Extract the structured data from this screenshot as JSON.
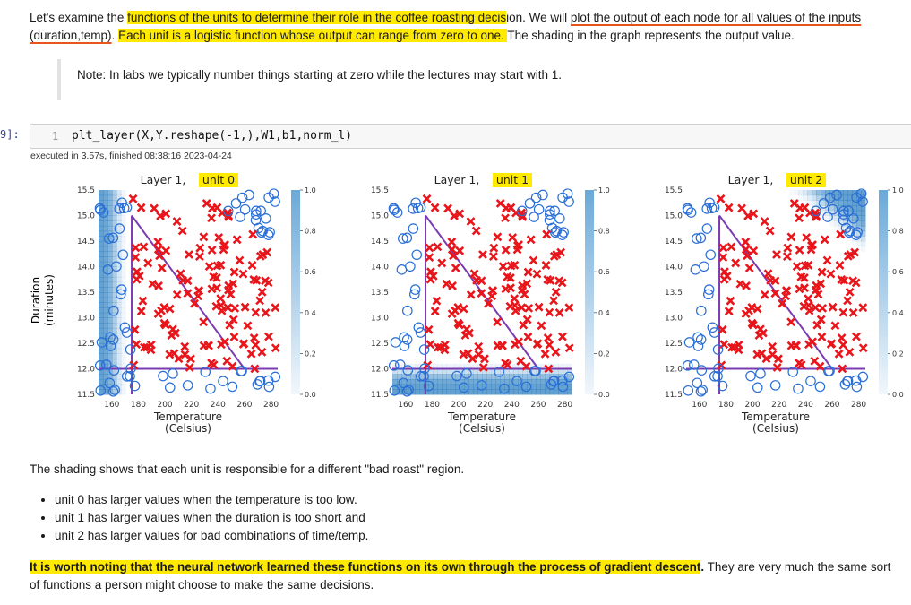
{
  "intro": {
    "t1": "Let's examine the ",
    "t2": "functions of the units to determine their role in the coffee roasting decis",
    "t3": "ion. We will ",
    "t4": "plot the output of each node for all values of the inputs",
    "t5": "(duration,temp)",
    "t6": ". ",
    "t7": "Each unit is a logistic function whose output can range from zero to one. ",
    "t8": "The shading in the graph represents the output value."
  },
  "note": "Note: In labs we typically number things starting at zero while the lectures may start with 1.",
  "code_cell": {
    "prompt": "9]:",
    "line_no": "1",
    "code": "plt_layer(X,Y.reshape(-1,),W1,b1,norm_l)",
    "exec_info": "executed in 3.57s, finished 08:38:16 2023-04-24"
  },
  "colors": {
    "cross": "#e8161b",
    "circle": "#2a6fd6",
    "line": "#7b3bb0",
    "highlight": "#ffea00",
    "shade": "#2d7fc0"
  },
  "chart_data": [
    {
      "type": "heatmap",
      "title_prefix": "Layer 1, ",
      "title_unit": "unit 0",
      "xlabel": "Temperature\n(Celsius)",
      "ylabel": "Duration\n(minutes)",
      "xlim": [
        150,
        285
      ],
      "ylim": [
        11.5,
        15.5
      ],
      "xticks": [
        160,
        180,
        200,
        220,
        240,
        260,
        280
      ],
      "yticks": [
        11.5,
        12.0,
        12.5,
        13.0,
        13.5,
        14.0,
        14.5,
        15.0,
        15.5
      ],
      "colorbar_ticks": [
        0.0,
        0.2,
        0.4,
        0.6,
        0.8,
        1.0
      ],
      "shading": "high when temperature is too low"
    },
    {
      "type": "heatmap",
      "title_prefix": "Layer 1, ",
      "title_unit": "unit 1",
      "xlabel": "Temperature\n(Celsius)",
      "xlim": [
        150,
        285
      ],
      "ylim": [
        11.5,
        15.5
      ],
      "xticks": [
        160,
        180,
        200,
        220,
        240,
        260,
        280
      ],
      "yticks": [
        11.5,
        12.0,
        12.5,
        13.0,
        13.5,
        14.0,
        14.5,
        15.0,
        15.5
      ],
      "colorbar_ticks": [
        0.0,
        0.2,
        0.4,
        0.6,
        0.8,
        1.0
      ],
      "shading": "high when duration is too short"
    },
    {
      "type": "heatmap",
      "title_prefix": "Layer 1, ",
      "title_unit": "unit 2",
      "xlabel": "Temperature\n(Celsius)",
      "xlim": [
        150,
        285
      ],
      "ylim": [
        11.5,
        15.5
      ],
      "xticks": [
        160,
        180,
        200,
        220,
        240,
        260,
        280
      ],
      "yticks": [
        11.5,
        12.0,
        12.5,
        13.0,
        13.5,
        14.0,
        14.5,
        15.0,
        15.5
      ],
      "colorbar_ticks": [
        0.0,
        0.2,
        0.4,
        0.6,
        0.8,
        1.0
      ],
      "shading": "high for bad combinations of time/temp"
    }
  ],
  "summary": "The shading shows that each unit is responsible for a different \"bad roast\" region.",
  "bullets": [
    "unit 0 has larger values when the temperature is too low.",
    "unit 1 has larger values when the duration is too short and",
    "unit 2 has larger values for bad combinations of time/temp."
  ],
  "closing": {
    "bold_hl": "It is worth noting that the neural network learned these functions on its own through the process of gradient descent",
    "bold_end": ".",
    "rest": " They are very much the same sort of functions a person might choose to make the same decisions."
  }
}
